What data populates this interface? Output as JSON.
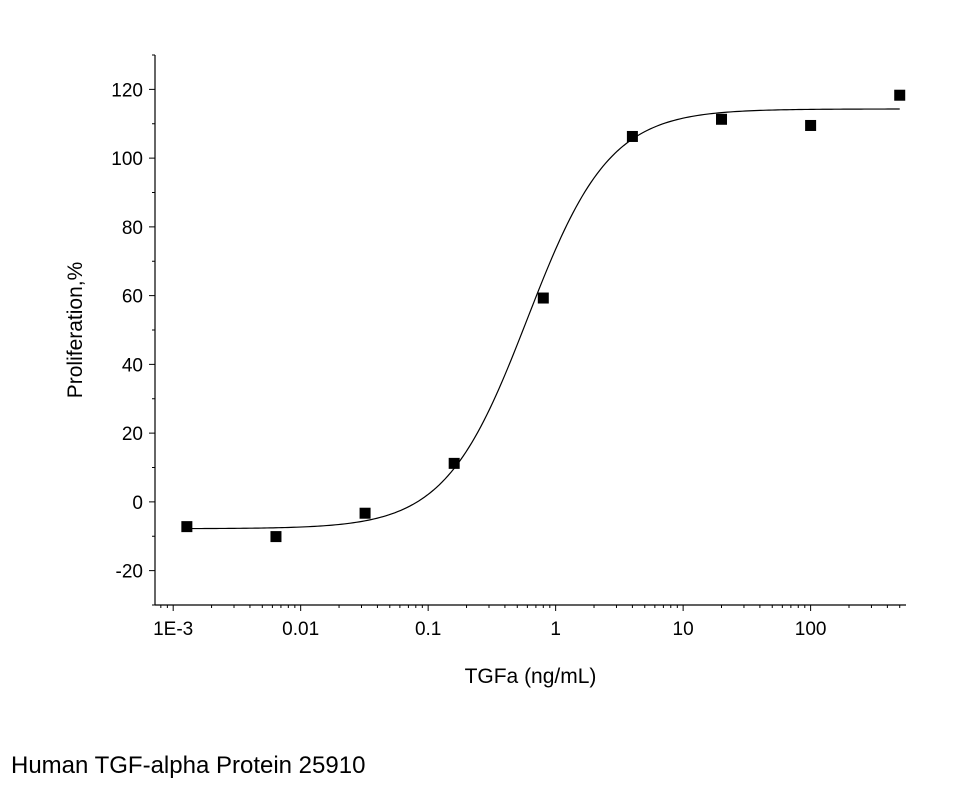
{
  "chart_data": {
    "type": "scatter",
    "xlabel": "TGFa (ng/mL)",
    "ylabel": "Proliferation,%",
    "x_scale": "log",
    "xlim": [
      0.00072,
      560
    ],
    "ylim": [
      -30,
      130
    ],
    "x_ticks": [
      {
        "value": 0.001,
        "label": "1E-3"
      },
      {
        "value": 0.01,
        "label": "0.01"
      },
      {
        "value": 0.1,
        "label": "0.1"
      },
      {
        "value": 1,
        "label": "1"
      },
      {
        "value": 10,
        "label": "10"
      },
      {
        "value": 100,
        "label": "100"
      }
    ],
    "y_ticks": [
      {
        "value": 120,
        "label": "120"
      },
      {
        "value": 100,
        "label": "100"
      },
      {
        "value": 80,
        "label": "80"
      },
      {
        "value": 60,
        "label": "60"
      },
      {
        "value": 40,
        "label": "40"
      },
      {
        "value": 20,
        "label": "20"
      },
      {
        "value": 0,
        "label": "0"
      },
      {
        "value": -20,
        "label": "-20"
      }
    ],
    "points": [
      {
        "x": 0.00128,
        "y": -7.2
      },
      {
        "x": 0.0064,
        "y": -10.1
      },
      {
        "x": 0.032,
        "y": -3.3
      },
      {
        "x": 0.16,
        "y": 11.2
      },
      {
        "x": 0.8,
        "y": 59.3
      },
      {
        "x": 4,
        "y": 106.3
      },
      {
        "x": 20,
        "y": 111.3
      },
      {
        "x": 100,
        "y": 109.5
      },
      {
        "x": 500,
        "y": 118.3
      }
    ],
    "fit_curve": {
      "model": "4PL",
      "bottom": -7.8,
      "top": 114.3,
      "ec50": 0.6,
      "hill": 1.35
    },
    "grid": false,
    "legend": "none"
  },
  "caption": "Human TGF-alpha Protein 25910"
}
